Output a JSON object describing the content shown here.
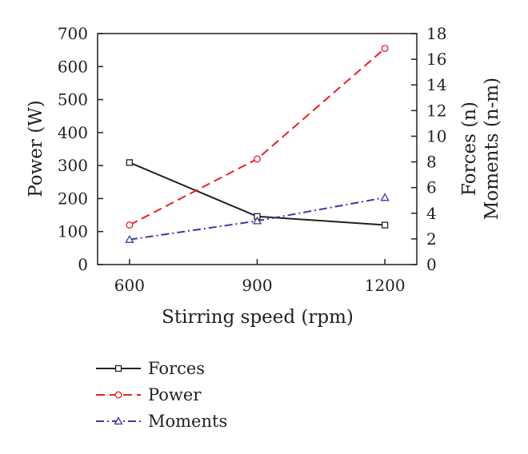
{
  "chart_data": {
    "type": "line",
    "title": "",
    "xlabel": "Stirring speed (rpm)",
    "ylabel_left": "Power (W)",
    "ylabel_right_lines": [
      "Forces (n)",
      "Moments (n-m)"
    ],
    "x": [
      600,
      900,
      1200
    ],
    "x_ticks": [
      "600",
      "900",
      "1200"
    ],
    "xlim": [
      525,
      1275
    ],
    "ylim_left": [
      0,
      700
    ],
    "ylim_right": [
      0,
      18
    ],
    "y_ticks_left": [
      "0",
      "100",
      "200",
      "300",
      "400",
      "500",
      "600",
      "700"
    ],
    "y_ticks_right": [
      "0",
      "2",
      "4",
      "6",
      "8",
      "10",
      "12",
      "14",
      "16",
      "18"
    ],
    "grid": false,
    "legend_position": "bottom",
    "series": [
      {
        "name": "Forces",
        "axis": "right",
        "values": [
          7.95,
          3.75,
          3.08
        ],
        "color": "#231f20",
        "dash": "solid",
        "marker": "square"
      },
      {
        "name": "Power",
        "axis": "left",
        "values": [
          120,
          320,
          655
        ],
        "color": "#ed1c24",
        "dash": "dashed",
        "marker": "circle"
      },
      {
        "name": "Moments",
        "axis": "right",
        "values": [
          1.95,
          3.4,
          5.22
        ],
        "color": "#3a3aa0",
        "dash": "dashdot",
        "marker": "triangle"
      }
    ]
  }
}
